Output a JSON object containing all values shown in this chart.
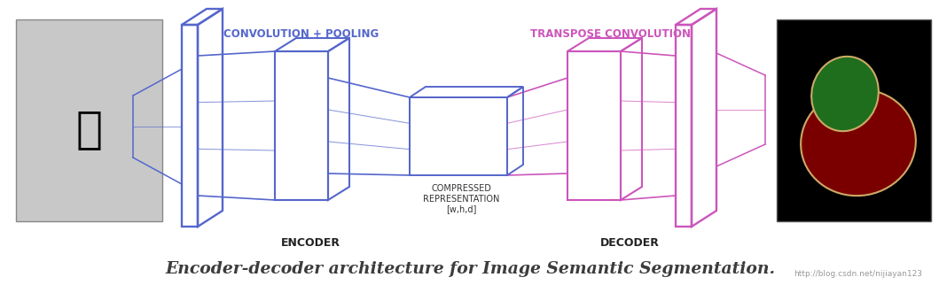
{
  "title": "Encoder-decoder architecture for Image Semantic Segmentation.",
  "title_fontsize": 13.5,
  "title_color": "#3c3c3c",
  "background_color": "#ffffff",
  "encoder_color": "#5566cc",
  "decoder_color": "#cc55bb",
  "label_encoder": "ENCODER",
  "label_decoder": "DECODER",
  "label_conv": "CONVOLUTION + POOLING",
  "label_transpose": "TRANSPOSE CONVOLUTION",
  "label_compressed": "COMPRESSED\nREPRESENTATION\n[w,h,d]",
  "encoder_label_color": "#5566cc",
  "decoder_label_color": "#cc55bb",
  "watermark": "http://blog.csdn.net/nijiayan123",
  "watermark_color": "#999999",
  "img_color": "#aaaaaa",
  "seg_bg_color": "#000000",
  "seg_red_color": "#7a0000",
  "seg_green_color": "#2a6a1a"
}
